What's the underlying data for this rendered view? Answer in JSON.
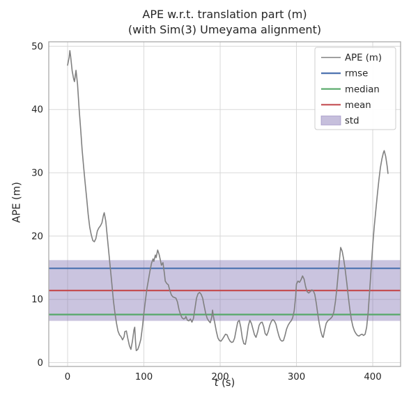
{
  "chart_data": {
    "type": "line",
    "title": "APE w.r.t. translation part (m)",
    "subtitle": "(with Sim(3) Umeyama alignment)",
    "xlabel": "t (s)",
    "ylabel": "APE (m)",
    "xlim": [
      -24.7,
      436.5
    ],
    "ylim": [
      -0.6,
      50.7
    ],
    "xticks": [
      0,
      100,
      200,
      300,
      400
    ],
    "yticks": [
      0,
      10,
      20,
      30,
      40,
      50
    ],
    "grid": true,
    "legend_position": "upper right",
    "colors": {
      "series": "#808080",
      "rmse": "#4c72b0",
      "median": "#55a868",
      "mean": "#c44e52",
      "std": "#8172b2",
      "grid": "#d8d8d8",
      "spine": "#aaaaaa",
      "text": "#262626"
    },
    "stats": {
      "rmse": 14.9,
      "mean": 11.4,
      "median": 7.6,
      "std": 9.6,
      "std_band": [
        6.6,
        16.2
      ]
    },
    "legend": [
      {
        "label": "APE (m)",
        "color": "#808080",
        "type": "line"
      },
      {
        "label": "rmse",
        "color": "#4c72b0",
        "type": "line"
      },
      {
        "label": "median",
        "color": "#55a868",
        "type": "line"
      },
      {
        "label": "mean",
        "color": "#c44e52",
        "type": "line"
      },
      {
        "label": "std",
        "color": "#8172b2",
        "type": "patch"
      }
    ],
    "series": [
      {
        "name": "APE (m)",
        "color": "#808080",
        "points": [
          [
            0,
            47.0
          ],
          [
            2,
            48.2
          ],
          [
            3,
            49.3
          ],
          [
            4,
            48.4
          ],
          [
            6,
            46.1
          ],
          [
            8,
            44.8
          ],
          [
            9,
            44.4
          ],
          [
            11,
            46.2
          ],
          [
            13,
            44.0
          ],
          [
            15,
            40.2
          ],
          [
            17,
            37.0
          ],
          [
            19,
            33.6
          ],
          [
            21,
            31.0
          ],
          [
            23,
            28.4
          ],
          [
            25,
            26.0
          ],
          [
            27,
            23.4
          ],
          [
            29,
            21.4
          ],
          [
            31,
            20.2
          ],
          [
            33,
            19.3
          ],
          [
            35,
            19.1
          ],
          [
            37,
            19.6
          ],
          [
            39,
            20.8
          ],
          [
            41,
            21.3
          ],
          [
            43,
            21.6
          ],
          [
            45,
            22.1
          ],
          [
            47,
            23.3
          ],
          [
            48,
            23.7
          ],
          [
            50,
            22.4
          ],
          [
            52,
            19.9
          ],
          [
            54,
            17.4
          ],
          [
            56,
            14.9
          ],
          [
            58,
            12.4
          ],
          [
            60,
            9.9
          ],
          [
            62,
            7.9
          ],
          [
            64,
            6.3
          ],
          [
            66,
            5.0
          ],
          [
            68,
            4.4
          ],
          [
            70,
            4.1
          ],
          [
            72,
            3.6
          ],
          [
            74,
            4.1
          ],
          [
            75,
            4.9
          ],
          [
            77,
            5.0
          ],
          [
            79,
            3.8
          ],
          [
            81,
            2.7
          ],
          [
            83,
            2.1
          ],
          [
            85,
            3.4
          ],
          [
            87,
            5.2
          ],
          [
            88,
            5.6
          ],
          [
            89,
            3.4
          ],
          [
            90,
            1.9
          ],
          [
            92,
            2.1
          ],
          [
            94,
            2.8
          ],
          [
            96,
            3.7
          ],
          [
            98,
            5.6
          ],
          [
            100,
            7.8
          ],
          [
            102,
            9.8
          ],
          [
            104,
            11.7
          ],
          [
            106,
            13.1
          ],
          [
            108,
            14.5
          ],
          [
            110,
            15.7
          ],
          [
            112,
            16.4
          ],
          [
            113,
            16.0
          ],
          [
            115,
            17.0
          ],
          [
            116,
            16.6
          ],
          [
            118,
            17.8
          ],
          [
            120,
            17.1
          ],
          [
            122,
            16.0
          ],
          [
            123,
            15.4
          ],
          [
            125,
            15.8
          ],
          [
            127,
            14.0
          ],
          [
            128,
            12.9
          ],
          [
            130,
            12.5
          ],
          [
            132,
            12.3
          ],
          [
            134,
            11.4
          ],
          [
            136,
            10.7
          ],
          [
            138,
            10.4
          ],
          [
            140,
            10.3
          ],
          [
            142,
            10.2
          ],
          [
            144,
            9.6
          ],
          [
            146,
            8.4
          ],
          [
            148,
            7.6
          ],
          [
            150,
            7.1
          ],
          [
            152,
            6.9
          ],
          [
            154,
            7.0
          ],
          [
            155,
            7.3
          ],
          [
            157,
            6.7
          ],
          [
            159,
            6.6
          ],
          [
            161,
            6.9
          ],
          [
            163,
            6.4
          ],
          [
            165,
            7.0
          ],
          [
            167,
            8.6
          ],
          [
            169,
            10.2
          ],
          [
            171,
            10.9
          ],
          [
            173,
            11.1
          ],
          [
            175,
            10.8
          ],
          [
            177,
            10.2
          ],
          [
            179,
            9.0
          ],
          [
            181,
            7.8
          ],
          [
            183,
            7.0
          ],
          [
            185,
            6.6
          ],
          [
            187,
            6.3
          ],
          [
            189,
            7.2
          ],
          [
            190,
            8.3
          ],
          [
            191,
            7.4
          ],
          [
            193,
            6.2
          ],
          [
            195,
            4.9
          ],
          [
            197,
            3.9
          ],
          [
            199,
            3.5
          ],
          [
            201,
            3.4
          ],
          [
            203,
            3.7
          ],
          [
            205,
            4.1
          ],
          [
            207,
            4.5
          ],
          [
            209,
            4.4
          ],
          [
            211,
            3.8
          ],
          [
            213,
            3.4
          ],
          [
            215,
            3.2
          ],
          [
            217,
            3.3
          ],
          [
            219,
            3.9
          ],
          [
            221,
            5.2
          ],
          [
            223,
            6.4
          ],
          [
            225,
            6.7
          ],
          [
            227,
            5.6
          ],
          [
            229,
            3.9
          ],
          [
            231,
            3.0
          ],
          [
            233,
            2.9
          ],
          [
            235,
            4.2
          ],
          [
            237,
            5.9
          ],
          [
            239,
            6.7
          ],
          [
            241,
            6.2
          ],
          [
            243,
            5.3
          ],
          [
            245,
            4.4
          ],
          [
            247,
            4.0
          ],
          [
            249,
            4.8
          ],
          [
            251,
            5.9
          ],
          [
            253,
            6.3
          ],
          [
            255,
            6.4
          ],
          [
            257,
            5.7
          ],
          [
            259,
            4.6
          ],
          [
            261,
            4.3
          ],
          [
            263,
            4.9
          ],
          [
            265,
            5.9
          ],
          [
            267,
            6.5
          ],
          [
            269,
            6.8
          ],
          [
            271,
            6.6
          ],
          [
            273,
            6.1
          ],
          [
            275,
            5.1
          ],
          [
            277,
            4.2
          ],
          [
            279,
            3.6
          ],
          [
            281,
            3.4
          ],
          [
            283,
            3.5
          ],
          [
            285,
            4.3
          ],
          [
            287,
            5.3
          ],
          [
            289,
            5.9
          ],
          [
            291,
            6.3
          ],
          [
            293,
            6.6
          ],
          [
            295,
            7.1
          ],
          [
            297,
            8.2
          ],
          [
            299,
            10.5
          ],
          [
            300,
            12.4
          ],
          [
            302,
            12.9
          ],
          [
            304,
            12.7
          ],
          [
            306,
            13.1
          ],
          [
            308,
            13.7
          ],
          [
            310,
            13.2
          ],
          [
            312,
            12.0
          ],
          [
            314,
            11.2
          ],
          [
            316,
            11.0
          ],
          [
            318,
            11.2
          ],
          [
            320,
            11.5
          ],
          [
            322,
            11.4
          ],
          [
            324,
            10.8
          ],
          [
            326,
            9.4
          ],
          [
            328,
            7.6
          ],
          [
            330,
            6.1
          ],
          [
            332,
            4.9
          ],
          [
            334,
            4.1
          ],
          [
            335,
            4.0
          ],
          [
            337,
            5.2
          ],
          [
            339,
            6.2
          ],
          [
            341,
            6.6
          ],
          [
            343,
            6.8
          ],
          [
            345,
            7.0
          ],
          [
            347,
            7.3
          ],
          [
            349,
            8.0
          ],
          [
            351,
            9.6
          ],
          [
            353,
            11.8
          ],
          [
            355,
            14.5
          ],
          [
            357,
            17.0
          ],
          [
            358,
            18.2
          ],
          [
            360,
            17.6
          ],
          [
            362,
            16.3
          ],
          [
            364,
            14.6
          ],
          [
            366,
            12.6
          ],
          [
            368,
            10.4
          ],
          [
            370,
            8.4
          ],
          [
            372,
            6.8
          ],
          [
            374,
            5.7
          ],
          [
            376,
            5.0
          ],
          [
            378,
            4.6
          ],
          [
            380,
            4.3
          ],
          [
            382,
            4.2
          ],
          [
            384,
            4.4
          ],
          [
            386,
            4.5
          ],
          [
            388,
            4.3
          ],
          [
            390,
            4.5
          ],
          [
            392,
            5.6
          ],
          [
            394,
            8.0
          ],
          [
            396,
            11.5
          ],
          [
            398,
            15.0
          ],
          [
            400,
            18.5
          ],
          [
            402,
            21.5
          ],
          [
            404,
            24.0
          ],
          [
            406,
            26.5
          ],
          [
            408,
            28.8
          ],
          [
            410,
            30.8
          ],
          [
            412,
            32.2
          ],
          [
            414,
            33.2
          ],
          [
            415,
            33.5
          ],
          [
            417,
            32.6
          ],
          [
            419,
            31.0
          ],
          [
            420,
            29.9
          ]
        ]
      }
    ]
  }
}
